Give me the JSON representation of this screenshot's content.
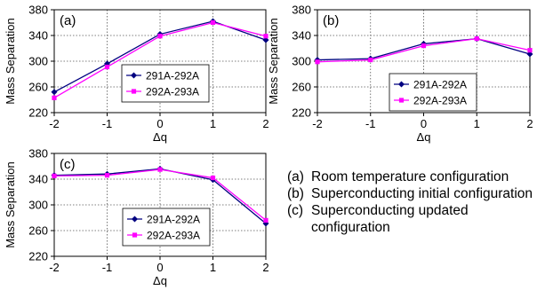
{
  "chart_data": [
    {
      "type": "line",
      "panel_label": "(a)",
      "x": [
        -2,
        -1,
        0,
        1,
        2
      ],
      "xlabel": "Δq",
      "ylabel": "Mass Separation",
      "xticks": [
        "-2",
        "-1",
        "0",
        "1",
        "2"
      ],
      "yticks": [
        "220",
        "260",
        "300",
        "340",
        "380"
      ],
      "xlim": [
        -2,
        2
      ],
      "ylim": [
        220,
        380
      ],
      "grid": true,
      "legend_position": "center-right",
      "series": [
        {
          "name": "291A-292A",
          "color": "#000080",
          "marker": "diamond",
          "values": [
            252,
            296,
            342,
            362,
            333
          ]
        },
        {
          "name": "292A-293A",
          "color": "#ff00ff",
          "marker": "square",
          "values": [
            243,
            291,
            339,
            360,
            339
          ]
        }
      ]
    },
    {
      "type": "line",
      "panel_label": "(b)",
      "x": [
        -2,
        -1,
        0,
        1,
        2
      ],
      "xlabel": "Δq",
      "ylabel": "Mass Separation",
      "xticks": [
        "-2",
        "-1",
        "0",
        "1",
        "2"
      ],
      "yticks": [
        "220",
        "260",
        "300",
        "340",
        "380"
      ],
      "xlim": [
        -2,
        2
      ],
      "ylim": [
        220,
        380
      ],
      "grid": true,
      "legend_position": "bottom-center",
      "series": [
        {
          "name": "291A-292A",
          "color": "#000080",
          "marker": "diamond",
          "values": [
            302,
            304,
            327,
            335,
            311
          ]
        },
        {
          "name": "292A-293A",
          "color": "#ff00ff",
          "marker": "square",
          "values": [
            299,
            302,
            324,
            335,
            317
          ]
        }
      ]
    },
    {
      "type": "line",
      "panel_label": "(c)",
      "x": [
        -2,
        -1,
        0,
        1,
        2
      ],
      "xlabel": "Δq",
      "ylabel": "Mass Separation",
      "xticks": [
        "-2",
        "-1",
        "0",
        "1",
        "2"
      ],
      "yticks": [
        "220",
        "260",
        "300",
        "340",
        "380"
      ],
      "xlim": [
        -2,
        2
      ],
      "ylim": [
        220,
        380
      ],
      "grid": true,
      "legend_position": "bottom-center",
      "series": [
        {
          "name": "291A-292A",
          "color": "#000080",
          "marker": "diamond",
          "values": [
            346,
            348,
            356,
            339,
            271
          ]
        },
        {
          "name": "292A-293A",
          "color": "#ff00ff",
          "marker": "square",
          "values": [
            345,
            346,
            355,
            342,
            276
          ]
        }
      ]
    }
  ],
  "captions": [
    {
      "tag": "(a)",
      "text": "Room temperature configuration"
    },
    {
      "tag": "(b)",
      "text": "Superconducting initial configuration"
    },
    {
      "tag": "(c)",
      "text": "Superconducting updated configuration"
    }
  ]
}
